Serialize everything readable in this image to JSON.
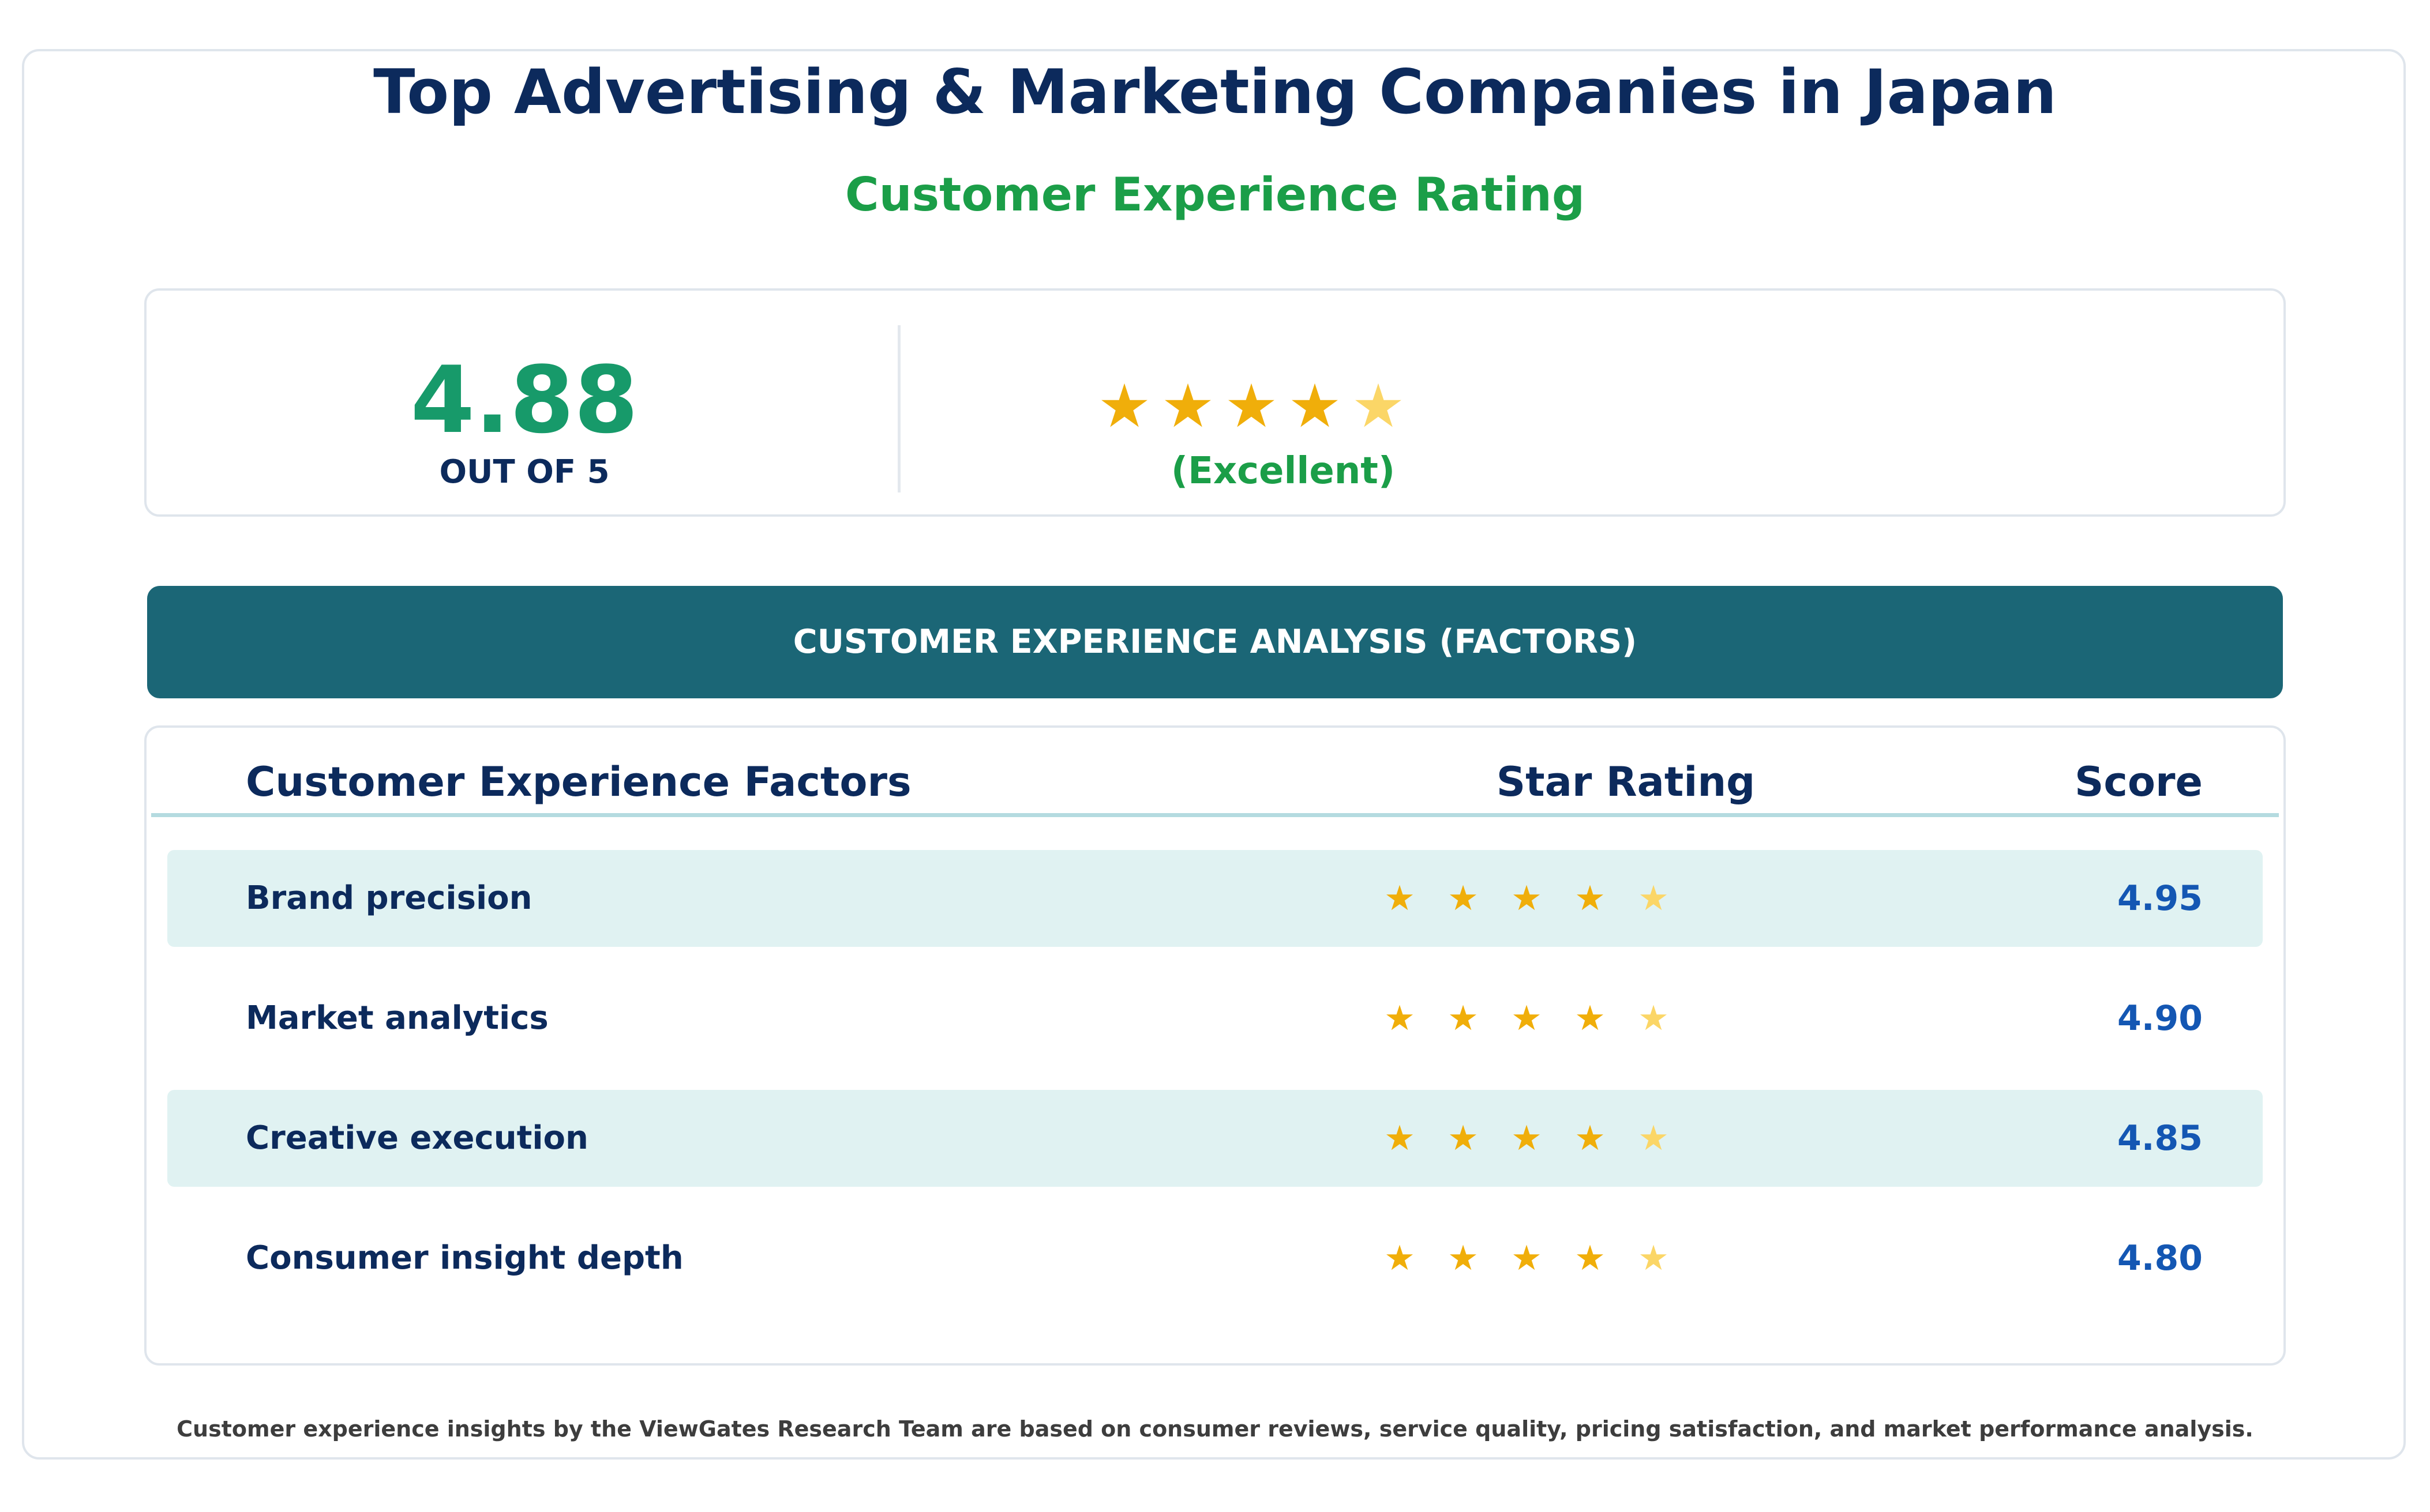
{
  "title": "Top Advertising & Marketing Companies in Japan",
  "subtitle": "Customer Experience Rating",
  "summary": {
    "score": "4.88",
    "out_of": "OUT OF 5",
    "rating_value": 4.88,
    "star_count": 5,
    "verdict": "(Excellent)"
  },
  "banner": "CUSTOMER EXPERIENCE ANALYSIS (FACTORS)",
  "table": {
    "headers": {
      "factor": "Customer Experience Factors",
      "rating": "Star Rating",
      "score": "Score"
    },
    "rows": [
      {
        "factor": "Brand precision",
        "score": "4.95",
        "value": 4.95
      },
      {
        "factor": "Market analytics",
        "score": "4.90",
        "value": 4.9
      },
      {
        "factor": "Creative execution",
        "score": "4.85",
        "value": 4.85
      },
      {
        "factor": "Consumer insight depth",
        "score": "4.80",
        "value": 4.8
      }
    ]
  },
  "footer": "Customer experience insights by the ViewGates Research Team are based on consumer reviews, service quality, pricing satisfaction, and market performance analysis.",
  "colors": {
    "star_full": "#f0ae0a",
    "star_partial": "#fbd667"
  },
  "icons": {
    "star": "star-icon"
  }
}
